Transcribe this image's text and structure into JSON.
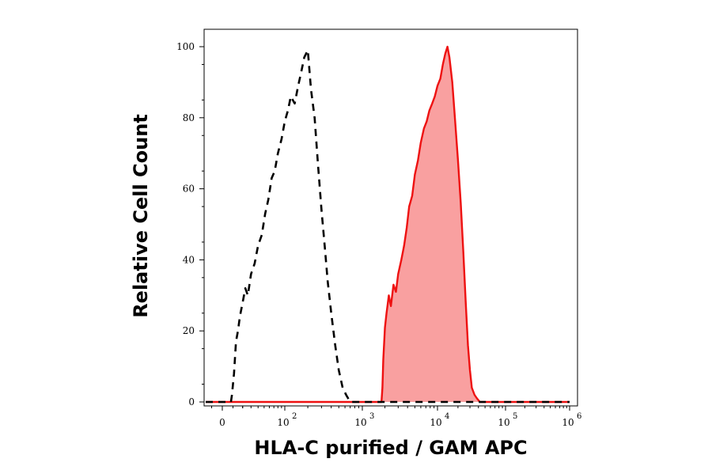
{
  "chart_data": {
    "type": "area",
    "xlabel": "HLA-C purified / GAM APC",
    "ylabel": "Relative Cell Count",
    "xscale": "biexponential (linear near 0, log above)",
    "xlim": [
      -30,
      1000000
    ],
    "ylim": [
      0,
      104
    ],
    "grid": false,
    "legend": "none",
    "x_ticks": [
      {
        "value": 0,
        "base": "0",
        "exp": ""
      },
      {
        "value": 100,
        "base": "10",
        "exp": "2"
      },
      {
        "value": 1000,
        "base": "10",
        "exp": "3"
      },
      {
        "value": 10000,
        "base": "10",
        "exp": "4"
      },
      {
        "value": 100000,
        "base": "10",
        "exp": "5"
      },
      {
        "value": 1000000,
        "base": "10",
        "exp": "6"
      }
    ],
    "y_ticks": [
      "0",
      "20",
      "40",
      "60",
      "80",
      "100"
    ],
    "series": [
      {
        "style": "dashed",
        "color": "#000000",
        "fill": "none",
        "x": [
          -30,
          8,
          9,
          11,
          13,
          15,
          17,
          20,
          23,
          26,
          30,
          35,
          40,
          46,
          52,
          58,
          65,
          72,
          80,
          90,
          100,
          110,
          120,
          135,
          150,
          165,
          180,
          200,
          220,
          245,
          270,
          300,
          330,
          360,
          400,
          450,
          500,
          560,
          620,
          700,
          1000000
        ],
        "y": [
          0,
          0,
          2,
          8,
          17,
          20,
          24,
          28,
          32,
          30,
          36,
          39,
          44,
          47,
          53,
          57,
          63,
          65,
          70,
          74,
          79,
          82,
          86,
          84,
          89,
          93,
          97,
          99,
          88,
          80,
          67,
          54,
          44,
          34,
          25,
          16,
          9,
          4,
          2,
          0,
          0
        ]
      },
      {
        "style": "solid",
        "color": "#ee1111",
        "fill": "#f9a0a0",
        "x": [
          -30,
          1800,
          1850,
          1900,
          2000,
          2100,
          2250,
          2400,
          2600,
          2800,
          3000,
          3300,
          3600,
          3900,
          4200,
          4600,
          5000,
          5500,
          6000,
          6600,
          7200,
          7800,
          8500,
          9200,
          10000,
          11000,
          12000,
          13000,
          14000,
          15000,
          16500,
          18000,
          20000,
          22000,
          24000,
          26000,
          28000,
          30000,
          32000,
          35000,
          38000,
          42000,
          47000,
          52000,
          60000,
          1000000
        ],
        "y": [
          0,
          0,
          4,
          12,
          21,
          25,
          30,
          27,
          33,
          31,
          36,
          40,
          44,
          49,
          55,
          58,
          64,
          68,
          73,
          77,
          79,
          82,
          84,
          86,
          89,
          91,
          95,
          98,
          100,
          97,
          90,
          80,
          68,
          56,
          42,
          28,
          16,
          9,
          4,
          2,
          1,
          0,
          0,
          0,
          0,
          0
        ]
      }
    ]
  }
}
